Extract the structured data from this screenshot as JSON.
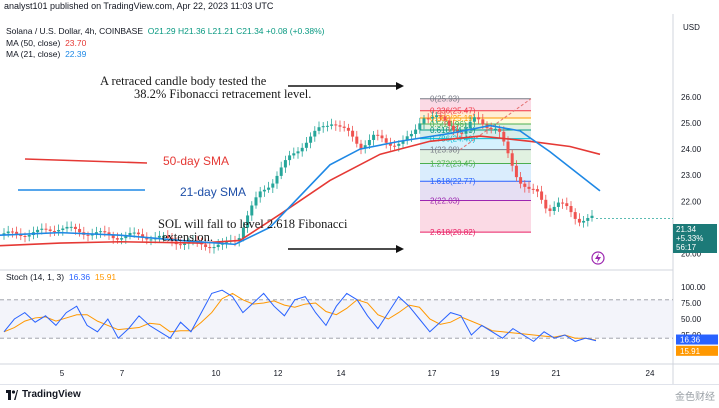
{
  "header": {
    "publisher": "analyst101 published on TradingView.com, Apr 22, 2023 11:03 UTC"
  },
  "legend": {
    "symbol": "Solana / U.S. Dollar, 4h, COINBASE",
    "ohlc": "O21.29  H21.36  L21.21  C21.34  +0.08 (+0.38%)",
    "ma50_label": "MA (50, close)",
    "ma50_value": "23.70",
    "ma21_label": "MA (21, close)",
    "ma21_value": "22.39",
    "stoch_label": "Stoch (14, 1, 3)",
    "stoch_k": "16.36",
    "stoch_d": "15.91"
  },
  "annotations": {
    "retrace_line1": "A retraced candle body tested the",
    "retrace_line2": "38.2% Fibonacci retracement level.",
    "sma50": "50-day SMA",
    "sma21": "21-day SMA",
    "fall_line1": "SOL  will fall to level 2.618 Fibonacci",
    "fall_line2": "extension."
  },
  "fib_levels": [
    {
      "label": "0(25.93)",
      "value": 25.93,
      "color": "#787b86"
    },
    {
      "label": "0.236(25.47)",
      "value": 25.47,
      "color": "#f23645"
    },
    {
      "label": "0.382(25.19)",
      "value": 25.19,
      "color": "#ff9800"
    },
    {
      "label": "0.5(24.96)",
      "value": 24.96,
      "color": "#4caf50"
    },
    {
      "label": "0.618(24.73)",
      "value": 24.73,
      "color": "#089981"
    },
    {
      "label": "0.786(24.40)",
      "value": 24.4,
      "color": "#00bcd4"
    },
    {
      "label": "1(23.98)",
      "value": 23.98,
      "color": "#787b86"
    },
    {
      "label": "1.272(23.45)",
      "value": 23.45,
      "color": "#4caf50"
    },
    {
      "label": "1.618(22.77)",
      "value": 22.77,
      "color": "#2962ff"
    },
    {
      "label": "2(22.03)",
      "value": 22.03,
      "color": "#9c27b0"
    },
    {
      "label": "2.618(20.82)",
      "value": 20.82,
      "color": "#e91e63"
    }
  ],
  "price_axis": {
    "currency": "USD",
    "ticks": [
      "26.00",
      "25.00",
      "24.00",
      "23.00",
      "22.00",
      "21.00",
      "20.00"
    ],
    "tag_price": "21.34",
    "tag_change": "+5.33%",
    "tag_timer": "56:17"
  },
  "stoch_axis": {
    "ticks": [
      "100.00",
      "75.00",
      "50.00",
      "25.00",
      "0.00"
    ],
    "tag_k": "16.36",
    "tag_d": "15.91"
  },
  "time_axis": {
    "ticks": [
      "5",
      "7",
      "10",
      "12",
      "14",
      "17",
      "19",
      "21",
      "24"
    ]
  },
  "colors": {
    "up": "#26a69a",
    "down": "#ef5350",
    "ma50": "#e53935",
    "ma21": "#1e88e5",
    "stoch_k": "#2962ff",
    "stoch_d": "#ff9800"
  },
  "footer": {
    "brand": "TradingView",
    "watermark": "金色财经"
  }
}
